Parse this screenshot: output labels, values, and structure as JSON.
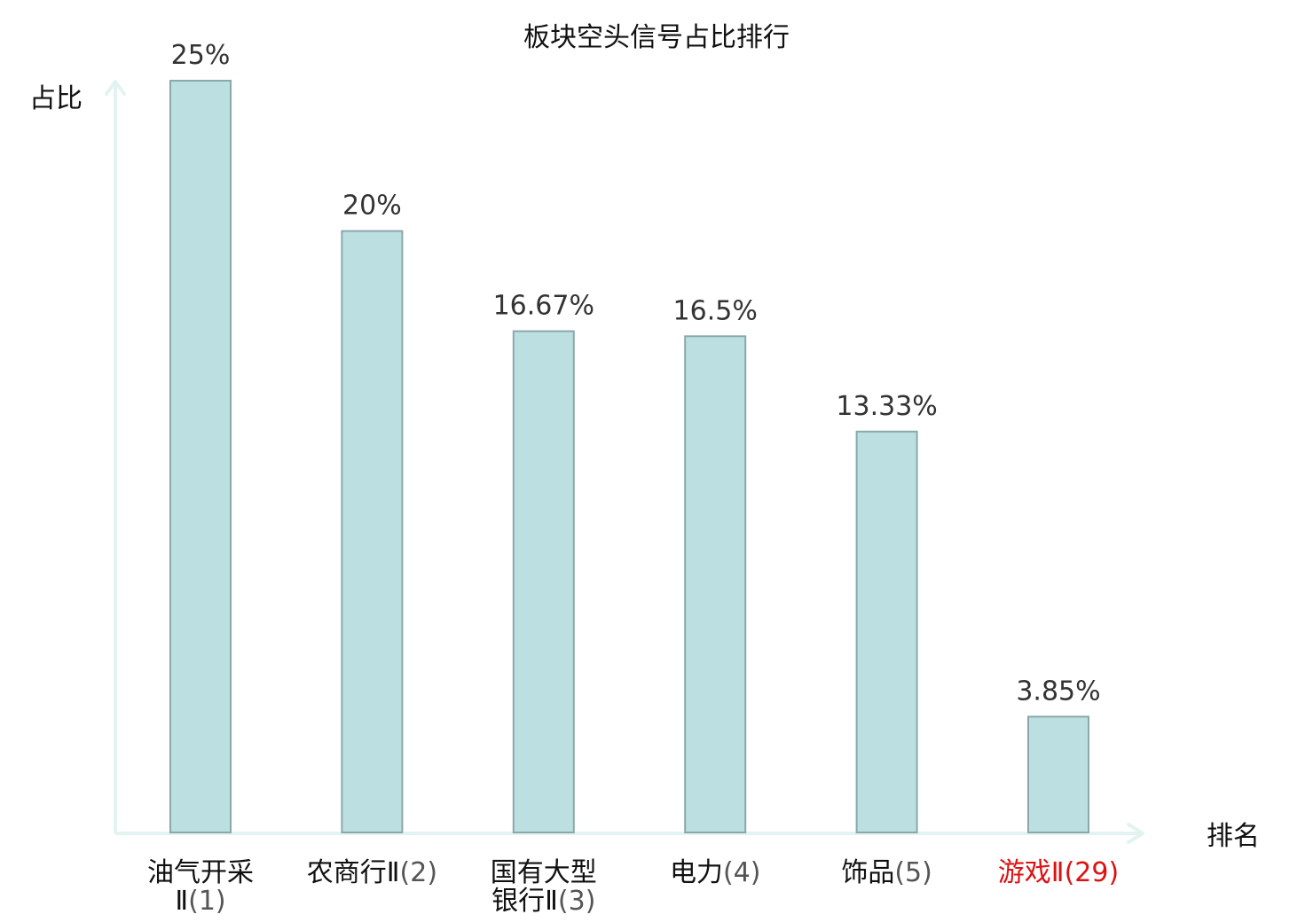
{
  "chart_data": {
    "type": "bar",
    "title": "板块空头信号占比排行",
    "xlabel": "排名",
    "ylabel": "占比",
    "categories": [
      {
        "main": [
          "油气开采",
          "Ⅱ"
        ],
        "rank": [
          "(1)"
        ]
      },
      {
        "main": [
          "农商行Ⅱ"
        ],
        "rank": [
          "(2)"
        ]
      },
      {
        "main": [
          "国有大型",
          "银行Ⅱ"
        ],
        "rank": [
          "(3)"
        ]
      },
      {
        "main": [
          "电力"
        ],
        "rank": [
          "(4)"
        ]
      },
      {
        "main": [
          "饰品"
        ],
        "rank": [
          "(5)"
        ]
      },
      {
        "main": [
          "游戏Ⅱ"
        ],
        "rank": [
          "(29)"
        ]
      }
    ],
    "values": [
      25,
      20,
      16.67,
      16.5,
      13.33,
      3.85
    ],
    "value_labels": [
      "25%",
      "20%",
      "16.67%",
      "16.5%",
      "13.33%",
      "3.85%"
    ],
    "ylim": [
      0,
      25
    ],
    "grid": false,
    "highlight_index": 5,
    "colors": {
      "bar_fill": "#bce0e2",
      "bar_stroke": "#8aa8aa",
      "axis": "#e3f3f1",
      "text": "#111111",
      "value_text": "#333333",
      "rank_text": "#555555",
      "highlight": "#dd1111"
    }
  }
}
